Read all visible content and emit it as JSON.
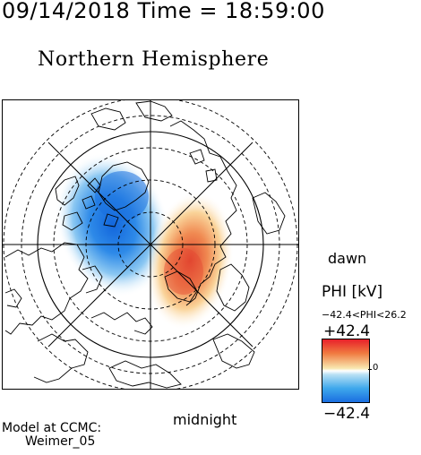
{
  "header": {
    "timestamp": "09/14/2018 Time = 18:59:00",
    "title": "Northern Hemisphere"
  },
  "labels": {
    "dawn": "dawn",
    "midnight": "midnight",
    "model_line1": "Model at CCMC:",
    "model_line2": "Weimer_05"
  },
  "colorbar": {
    "title": "PHI [kV]",
    "range_text": "−42.4<PHI<26.2",
    "max_label": "+42.4",
    "min_label": "−42.4",
    "zero_label": "0",
    "max_color": "#e8202a",
    "mid_color": "#ffffff",
    "min_color": "#1a6ee0"
  },
  "map": {
    "projection": "polar",
    "potential_min_kv": -42.4,
    "potential_max_kv": 26.2,
    "negative_cell_color": "#1a7ae6",
    "positive_cell_color": "#e8503a"
  }
}
